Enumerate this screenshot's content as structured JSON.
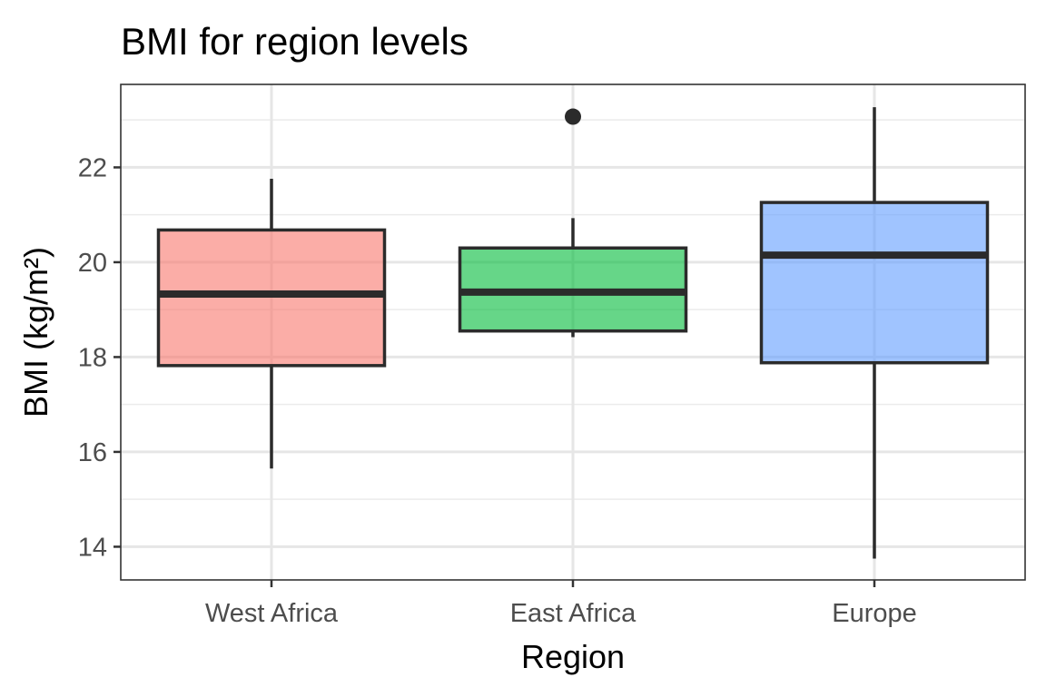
{
  "chart_data": {
    "type": "box",
    "title": "BMI for region levels",
    "xlabel": "Region",
    "ylabel": "BMI (kg/m²)",
    "ylim": [
      13.3,
      23.75
    ],
    "yticks": [
      14,
      16,
      18,
      20,
      22
    ],
    "y_tick_labels": [
      "14",
      "16",
      "18",
      "20",
      "22"
    ],
    "grid": true,
    "legend": "none",
    "categories": [
      "West Africa",
      "East Africa",
      "Europe"
    ],
    "boxes": [
      {
        "category": "West Africa",
        "color": "#F8766D",
        "whisker_low": 15.65,
        "q1": 17.82,
        "median": 19.33,
        "q3": 20.68,
        "whisker_high": 21.76,
        "outliers": []
      },
      {
        "category": "East Africa",
        "color": "#00BA38",
        "whisker_low": 18.42,
        "q1": 18.55,
        "median": 19.37,
        "q3": 20.3,
        "whisker_high": 20.93,
        "outliers": [
          23.07
        ]
      },
      {
        "category": "Europe",
        "color": "#619CFF",
        "whisker_low": 13.75,
        "q1": 17.88,
        "median": 20.15,
        "q3": 21.26,
        "whisker_high": 23.27,
        "outliers": []
      }
    ]
  }
}
